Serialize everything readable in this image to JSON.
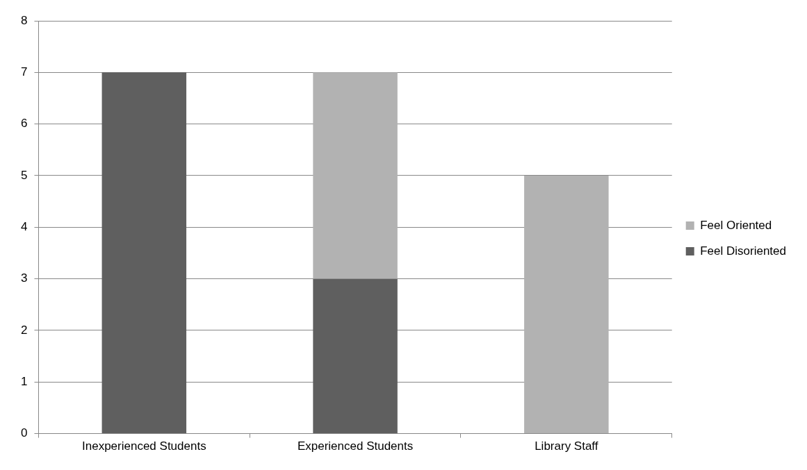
{
  "chart_data": {
    "type": "bar",
    "stacked": true,
    "categories": [
      "Inexperienced Students",
      "Experienced Students",
      "Library Staff"
    ],
    "series": [
      {
        "name": "Feel Disoriented",
        "color": "#5f5f5f",
        "values": [
          7,
          3,
          0
        ]
      },
      {
        "name": "Feel Oriented",
        "color": "#b2b2b2",
        "values": [
          0,
          4,
          5
        ]
      }
    ],
    "ylim": [
      0,
      8
    ],
    "yticks": [
      0,
      1,
      2,
      3,
      4,
      5,
      6,
      7,
      8
    ],
    "grid": "y",
    "legend": "right"
  }
}
